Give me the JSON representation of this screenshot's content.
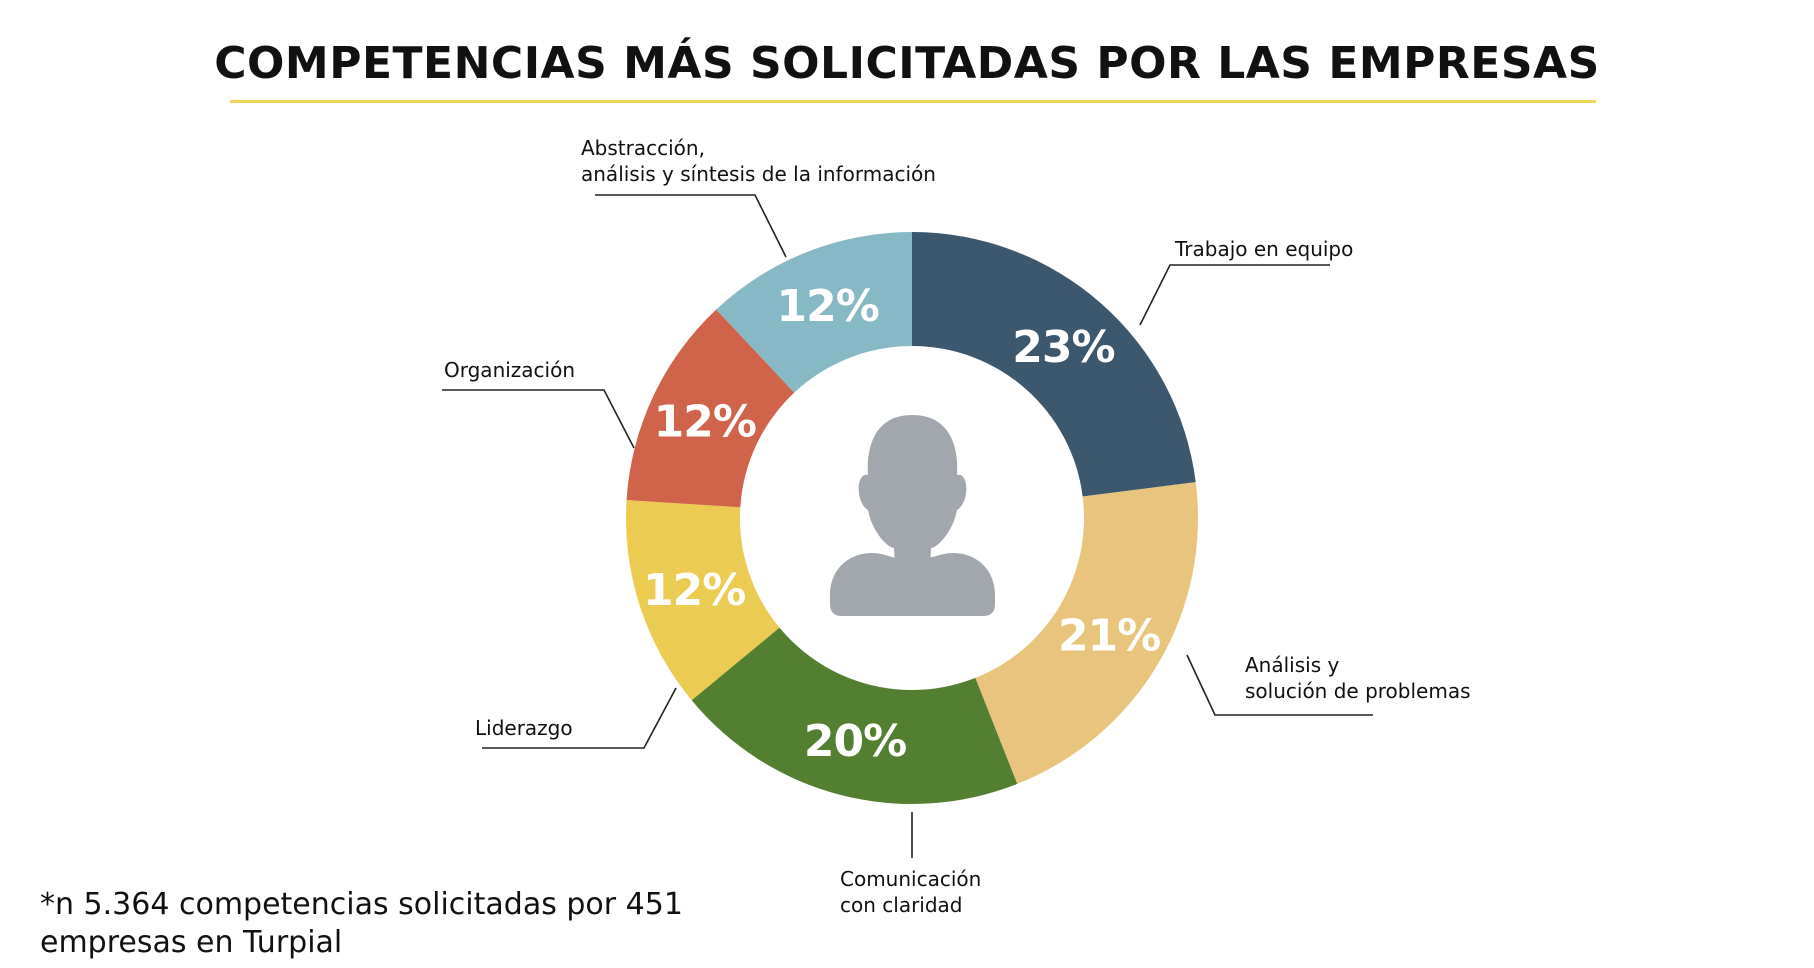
{
  "title": "COMPETENCIAS MÁS SOLICITADAS POR LAS EMPRESAS",
  "footnote": {
    "line1": "*n 5.364 competencias solicitadas por 451",
    "line2": "empresas en Turpial"
  },
  "icons": {
    "center": "person-avatar-icon"
  },
  "colors": {
    "title_rule": "#efd55a",
    "avatar": "#a1a7ad",
    "value_text": "#ffffff",
    "leader_line": "#222222"
  },
  "chart_data": {
    "type": "pie",
    "style": "donut",
    "title": "COMPETENCIAS MÁS SOLICITADAS POR LAS EMPRESAS",
    "unit": "%",
    "slices": [
      {
        "lines": [
          "Trabajo en equipo"
        ],
        "value": 23,
        "color": "#3b586f"
      },
      {
        "lines": [
          "Análisis y",
          "solución de problemas"
        ],
        "value": 21,
        "color": "#e8c47c"
      },
      {
        "lines": [
          "Comunicación",
          "con claridad"
        ],
        "value": 20,
        "color": "#537f31"
      },
      {
        "lines": [
          "Liderazgo"
        ],
        "value": 12,
        "color": "#ebcb52"
      },
      {
        "lines": [
          "Organización"
        ],
        "value": 12,
        "color": "#d0644b"
      },
      {
        "lines": [
          "Abstracción,",
          "análisis y síntesis de la información"
        ],
        "value": 12,
        "color": "#86b8c5"
      }
    ]
  }
}
